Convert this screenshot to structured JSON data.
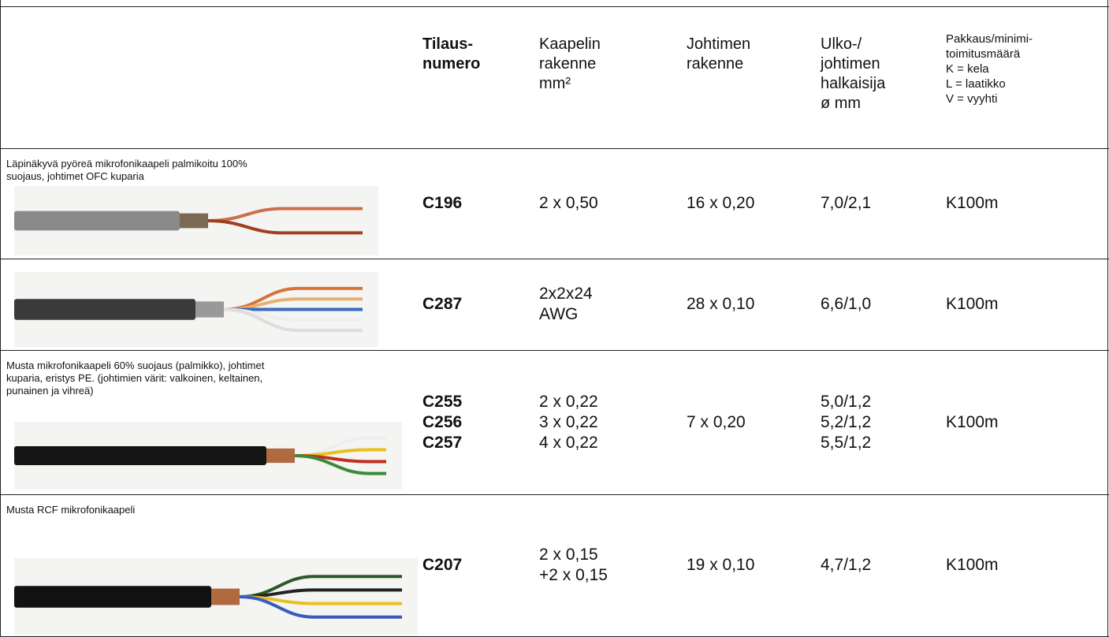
{
  "table": {
    "header": [
      {
        "lines": [
          "Tilaus-",
          "numero"
        ]
      },
      {
        "lines": [
          "Kaapelin",
          "rakenne",
          "mm²"
        ]
      },
      {
        "lines": [
          "Johtimen",
          "rakenne"
        ]
      },
      {
        "lines": [
          "Ulko-/",
          "johtimen",
          "halkaisija",
          "ø mm"
        ]
      },
      {
        "lines": [
          "Pakkaus/minimi-",
          "toimitusmäärä",
          "K = kela",
          "L = laatikko",
          "V = vyyhti"
        ]
      }
    ],
    "rows": [
      {
        "description": [
          "Läpinäkyvä pyöreä mikrofonikaapeli  palmikoitu 100%",
          "suojaus,  johtimet OFC kuparia"
        ],
        "cells": [
          [
            "C196"
          ],
          [
            "2 x 0,50"
          ],
          [
            "16 x 0,20"
          ],
          [
            "7,0/2,1"
          ],
          [
            "K100m"
          ]
        ]
      },
      {
        "description": [],
        "cells": [
          [
            "C287"
          ],
          [
            "2x2x24",
            "AWG"
          ],
          [
            "28 x 0,10"
          ],
          [
            "6,6/1,0"
          ],
          [
            "K100m"
          ]
        ]
      },
      {
        "description": [
          "Musta mikrofonikaapeli 60% suojaus (palmikko), johtimet",
          "kuparia, eristys PE. (johtimien värit: valkoinen, keltainen,",
          "punainen ja vihreä)"
        ],
        "cells": [
          [
            "C255",
            "C256",
            "C257"
          ],
          [
            "2 x 0,22",
            "3 x 0,22",
            "4 x 0,22"
          ],
          [
            "7 x 0,20"
          ],
          [
            "5,0/1,2",
            "5,2/1,2",
            "5,5/1,2"
          ],
          [
            "K100m"
          ]
        ]
      },
      {
        "description": [
          "Musta RCF mikrofonikaapeli"
        ],
        "cells": [
          [
            "C207"
          ],
          [
            "2 x 0,15",
            "+2 x 0,15"
          ],
          [
            "19 x 0,10"
          ],
          [
            "4,7/1,2"
          ],
          [
            "K100m"
          ]
        ]
      }
    ]
  }
}
